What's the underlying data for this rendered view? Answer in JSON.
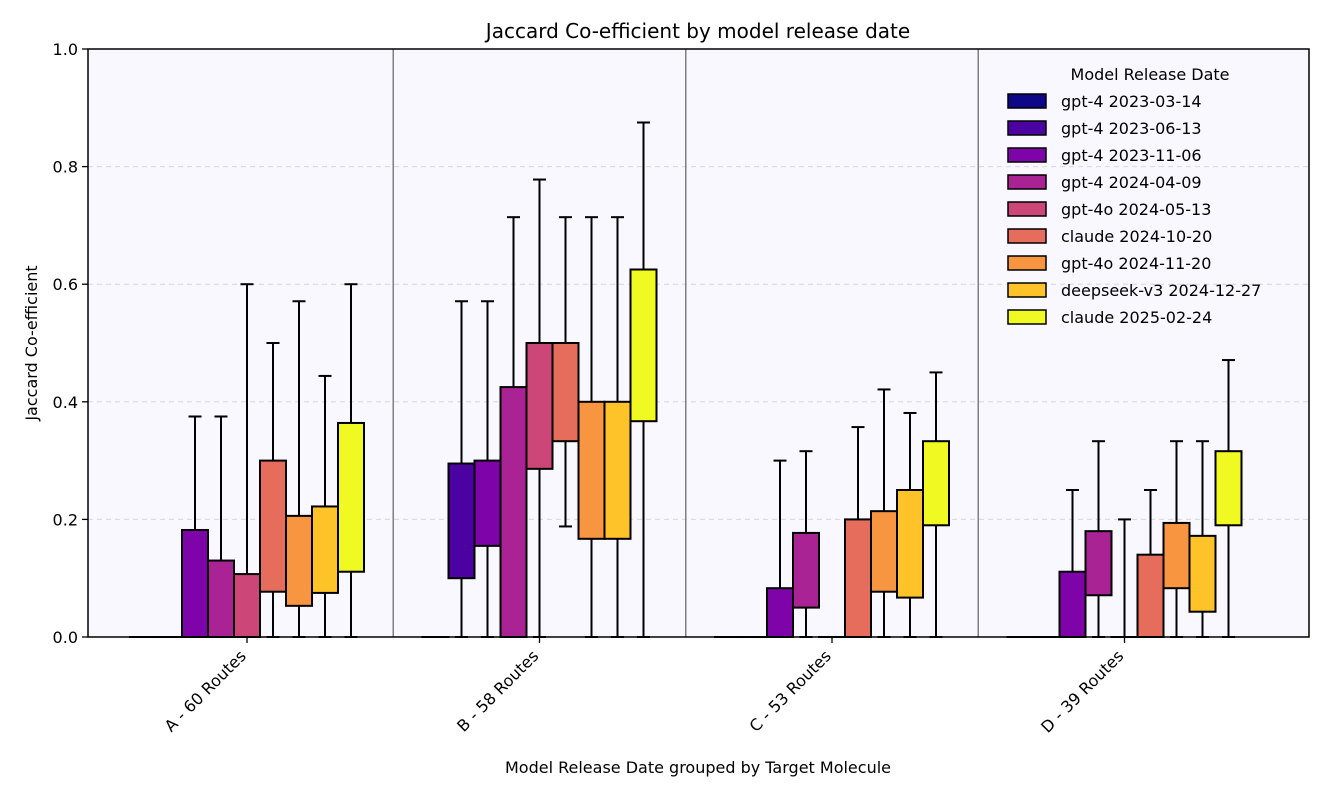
{
  "chart_data": {
    "type": "boxplot",
    "title": "Jaccard Co-efficient by model release date",
    "xlabel": "Model Release Date grouped by Target Molecule",
    "ylabel": "Jaccard Co-efficient",
    "ylim": [
      0,
      1.0
    ],
    "yticks": [
      0.0,
      0.2,
      0.4,
      0.6,
      0.8,
      1.0
    ],
    "ytick_labels": [
      "0.0",
      "0.2",
      "0.4",
      "0.6",
      "0.8",
      "1.0"
    ],
    "grid": "horizontal dashed",
    "legend": {
      "title": "Model Release Date",
      "position": "top-right"
    },
    "categories": [
      "A - 60 Routes",
      "B - 58 Routes",
      "C - 53 Routes",
      "D - 39 Routes"
    ],
    "series": [
      {
        "name": "gpt-4 2023-03-14",
        "color": "#0d0887",
        "boxes": [
          {
            "q1": 0,
            "q3": 0,
            "whisker_low": 0,
            "whisker_high": 0
          },
          {
            "q1": 0,
            "q3": 0,
            "whisker_low": 0,
            "whisker_high": 0
          },
          {
            "q1": 0,
            "q3": 0,
            "whisker_low": 0,
            "whisker_high": 0
          },
          {
            "q1": 0,
            "q3": 0,
            "whisker_low": 0,
            "whisker_high": 0
          }
        ]
      },
      {
        "name": "gpt-4 2023-06-13",
        "color": "#4c02a1",
        "boxes": [
          {
            "q1": 0,
            "q3": 0,
            "whisker_low": 0,
            "whisker_high": 0
          },
          {
            "q1": 0.1,
            "q3": 0.295,
            "whisker_low": 0,
            "whisker_high": 0.571
          },
          {
            "q1": 0,
            "q3": 0,
            "whisker_low": 0,
            "whisker_high": 0
          },
          {
            "q1": 0,
            "q3": 0,
            "whisker_low": 0,
            "whisker_high": 0
          }
        ]
      },
      {
        "name": "gpt-4 2023-11-06",
        "color": "#7e03a8",
        "boxes": [
          {
            "q1": 0,
            "q3": 0.182,
            "whisker_low": 0,
            "whisker_high": 0.375
          },
          {
            "q1": 0.155,
            "q3": 0.3,
            "whisker_low": 0,
            "whisker_high": 0.571
          },
          {
            "q1": 0,
            "q3": 0.083,
            "whisker_low": 0,
            "whisker_high": 0.3
          },
          {
            "q1": 0,
            "q3": 0.111,
            "whisker_low": 0,
            "whisker_high": 0.25
          }
        ]
      },
      {
        "name": "gpt-4 2024-04-09",
        "color": "#a92395",
        "boxes": [
          {
            "q1": 0,
            "q3": 0.13,
            "whisker_low": 0,
            "whisker_high": 0.375
          },
          {
            "q1": 0,
            "q3": 0.425,
            "whisker_low": 0,
            "whisker_high": 0.714
          },
          {
            "q1": 0.05,
            "q3": 0.177,
            "whisker_low": 0,
            "whisker_high": 0.316
          },
          {
            "q1": 0.071,
            "q3": 0.18,
            "whisker_low": 0,
            "whisker_high": 0.333
          }
        ]
      },
      {
        "name": "gpt-4o 2024-05-13",
        "color": "#cc4778",
        "boxes": [
          {
            "q1": 0,
            "q3": 0.107,
            "whisker_low": 0,
            "whisker_high": 0.6
          },
          {
            "q1": 0.286,
            "q3": 0.5,
            "whisker_low": 0,
            "whisker_high": 0.778
          },
          {
            "q1": 0,
            "q3": 0,
            "whisker_low": 0,
            "whisker_high": 0
          },
          {
            "q1": 0,
            "q3": 0,
            "whisker_low": 0,
            "whisker_high": 0.2
          }
        ]
      },
      {
        "name": "claude 2024-10-20",
        "color": "#e66c5c",
        "boxes": [
          {
            "q1": 0.077,
            "q3": 0.3,
            "whisker_low": 0,
            "whisker_high": 0.5
          },
          {
            "q1": 0.333,
            "q3": 0.5,
            "whisker_low": 0.188,
            "whisker_high": 0.714
          },
          {
            "q1": 0,
            "q3": 0.2,
            "whisker_low": 0,
            "whisker_high": 0.357
          },
          {
            "q1": 0,
            "q3": 0.14,
            "whisker_low": 0,
            "whisker_high": 0.25
          }
        ]
      },
      {
        "name": "gpt-4o 2024-11-20",
        "color": "#f89540",
        "boxes": [
          {
            "q1": 0.053,
            "q3": 0.206,
            "whisker_low": 0,
            "whisker_high": 0.571
          },
          {
            "q1": 0.167,
            "q3": 0.4,
            "whisker_low": 0,
            "whisker_high": 0.714
          },
          {
            "q1": 0.077,
            "q3": 0.214,
            "whisker_low": 0,
            "whisker_high": 0.421
          },
          {
            "q1": 0.083,
            "q3": 0.194,
            "whisker_low": 0,
            "whisker_high": 0.333
          }
        ]
      },
      {
        "name": "deepseek-v3 2024-12-27",
        "color": "#fdc328",
        "boxes": [
          {
            "q1": 0.075,
            "q3": 0.222,
            "whisker_low": 0,
            "whisker_high": 0.444
          },
          {
            "q1": 0.167,
            "q3": 0.4,
            "whisker_low": 0,
            "whisker_high": 0.714
          },
          {
            "q1": 0.067,
            "q3": 0.25,
            "whisker_low": 0,
            "whisker_high": 0.381
          },
          {
            "q1": 0.043,
            "q3": 0.172,
            "whisker_low": 0,
            "whisker_high": 0.333
          }
        ]
      },
      {
        "name": "claude 2025-02-24",
        "color": "#f0f921",
        "boxes": [
          {
            "q1": 0.111,
            "q3": 0.364,
            "whisker_low": 0,
            "whisker_high": 0.6
          },
          {
            "q1": 0.367,
            "q3": 0.625,
            "whisker_low": 0,
            "whisker_high": 0.875
          },
          {
            "q1": 0.19,
            "q3": 0.333,
            "whisker_low": 0,
            "whisker_high": 0.45
          },
          {
            "q1": 0.19,
            "q3": 0.316,
            "whisker_low": 0,
            "whisker_high": 0.471
          }
        ]
      }
    ]
  },
  "colors": {
    "plot_background": "#f9f7ff",
    "grid": "#d8d8d8",
    "separator": "#808080"
  }
}
